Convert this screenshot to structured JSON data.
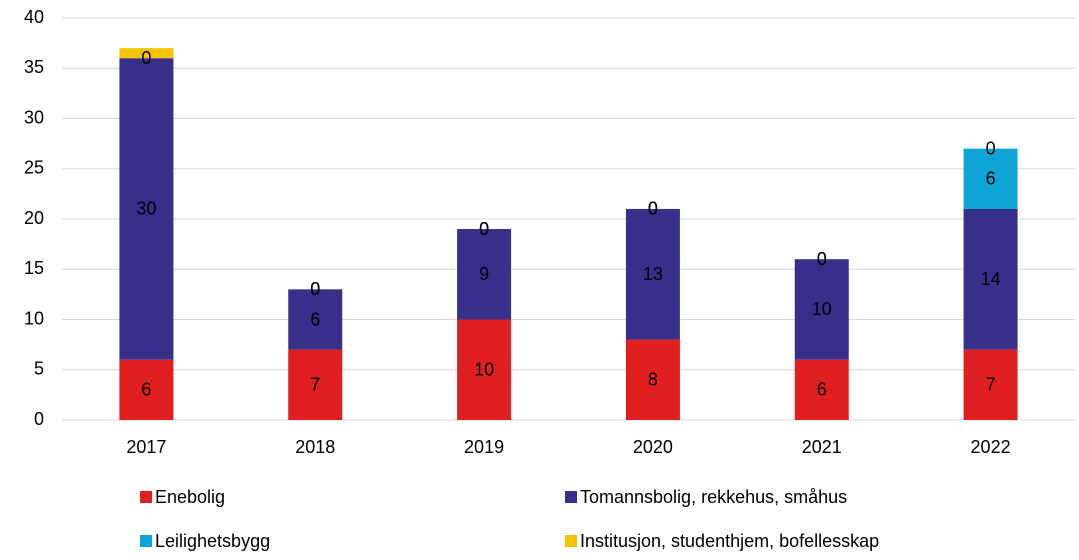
{
  "chart_data": {
    "type": "stacked_bar",
    "categories": [
      "2017",
      "2018",
      "2019",
      "2020",
      "2021",
      "2022"
    ],
    "series": [
      {
        "name": "Enebolig",
        "color": "#e02020",
        "values": [
          6,
          7,
          10,
          8,
          6,
          7
        ]
      },
      {
        "name": "Tomannsbolig, rekkehus, småhus",
        "color": "#372f8a",
        "values": [
          30,
          6,
          9,
          13,
          10,
          14
        ]
      },
      {
        "name": "Leilighetsbygg",
        "color": "#0ea5d6",
        "values": [
          0,
          0,
          0,
          0,
          0,
          6
        ]
      },
      {
        "name": "Institusjon, studenthjem, bofellesskap",
        "color": "#f5c400",
        "values": [
          1,
          0,
          0,
          0,
          0,
          0
        ],
        "value_labels": [
          null,
          "0",
          "0",
          "0",
          "0",
          "0"
        ]
      }
    ],
    "ylim": [
      0,
      40
    ],
    "yticks": [
      0,
      5,
      10,
      15,
      20,
      25,
      30,
      35,
      40
    ],
    "grid": true,
    "legend": "bottom"
  }
}
